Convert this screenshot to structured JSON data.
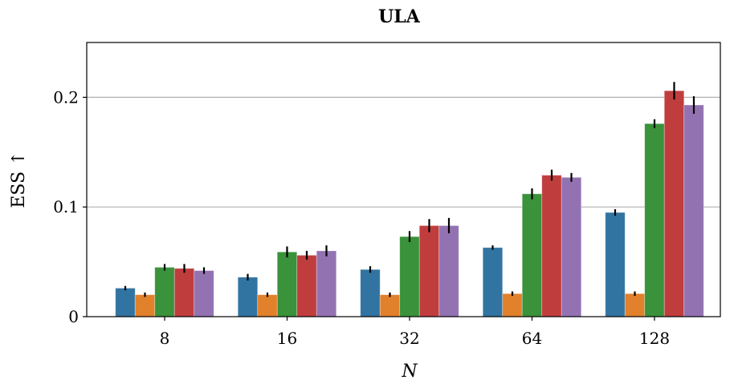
{
  "chart_data": {
    "type": "bar",
    "title": "ULA",
    "xlabel": "N",
    "ylabel": "ESS ↑",
    "categories": [
      "8",
      "16",
      "32",
      "64",
      "128"
    ],
    "ylim": [
      0,
      0.25
    ],
    "yticks": [
      0,
      0.1,
      0.2
    ],
    "ytick_labels": [
      "0",
      "0.1",
      "0.2"
    ],
    "grid": "horizontal",
    "colors": [
      "#3274a1",
      "#e1812c",
      "#3a923a",
      "#c03d3e",
      "#9372b2"
    ],
    "series": [
      {
        "values": [
          0.026,
          0.036,
          0.043,
          0.063,
          0.095
        ],
        "errors": [
          0.002,
          0.003,
          0.003,
          0.002,
          0.003
        ]
      },
      {
        "values": [
          0.02,
          0.02,
          0.02,
          0.021,
          0.021
        ],
        "errors": [
          0.002,
          0.002,
          0.002,
          0.002,
          0.002
        ]
      },
      {
        "values": [
          0.045,
          0.059,
          0.073,
          0.112,
          0.176
        ],
        "errors": [
          0.003,
          0.005,
          0.005,
          0.005,
          0.004
        ]
      },
      {
        "values": [
          0.044,
          0.056,
          0.083,
          0.129,
          0.206
        ],
        "errors": [
          0.004,
          0.004,
          0.006,
          0.005,
          0.008
        ]
      },
      {
        "values": [
          0.042,
          0.06,
          0.083,
          0.127,
          0.193
        ],
        "errors": [
          0.003,
          0.005,
          0.007,
          0.004,
          0.008
        ]
      }
    ]
  }
}
